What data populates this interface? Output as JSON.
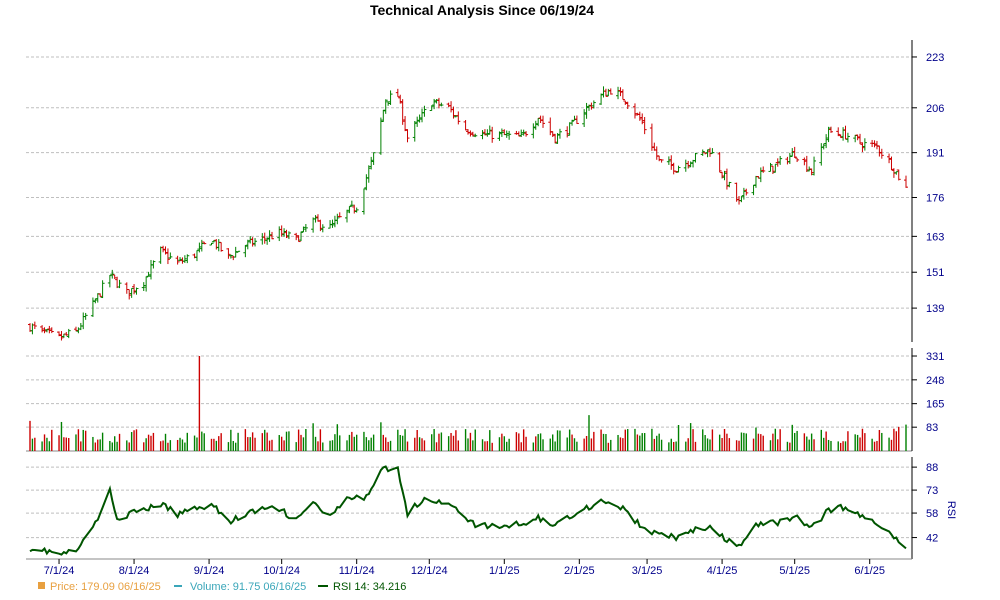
{
  "chart_data": {
    "type": "candlestick-volume-rsi",
    "title": "Technical Analysis Since 06/19/24",
    "x_tick_labels": [
      "7/1/24",
      "8/1/24",
      "9/1/24",
      "10/1/24",
      "11/1/24",
      "12/1/24",
      "1/1/25",
      "2/1/25",
      "3/1/25",
      "4/1/25",
      "5/1/25",
      "6/1/25"
    ],
    "x_tick_dates": [
      "2024-07-01",
      "2024-08-01",
      "2024-09-01",
      "2024-10-01",
      "2024-11-01",
      "2024-12-01",
      "2025-01-01",
      "2025-02-01",
      "2025-03-01",
      "2025-04-01",
      "2025-05-01",
      "2025-06-01"
    ],
    "date_range": [
      "2024-06-19",
      "2025-06-16"
    ],
    "price_panel": {
      "tick_labels": [
        "223",
        "206",
        "191",
        "176",
        "163",
        "151",
        "139"
      ],
      "tick_values": [
        223,
        206,
        191,
        176,
        163,
        151,
        139
      ],
      "ylim": [
        129,
        226
      ],
      "grid": true,
      "up_color": "#008000",
      "down_color": "#cc0000",
      "anchors": [
        [
          "2024-06-19",
          133
        ],
        [
          "2024-06-24",
          131
        ],
        [
          "2024-07-01",
          129
        ],
        [
          "2024-07-08",
          131
        ],
        [
          "2024-07-15",
          140
        ],
        [
          "2024-07-22",
          150
        ],
        [
          "2024-07-29",
          144
        ],
        [
          "2024-08-05",
          148
        ],
        [
          "2024-08-12",
          158
        ],
        [
          "2024-08-19",
          154
        ],
        [
          "2024-08-26",
          157
        ],
        [
          "2024-09-02",
          162
        ],
        [
          "2024-09-09",
          156
        ],
        [
          "2024-09-16",
          160
        ],
        [
          "2024-09-23",
          162
        ],
        [
          "2024-09-30",
          164
        ],
        [
          "2024-10-07",
          162
        ],
        [
          "2024-10-14",
          168
        ],
        [
          "2024-10-21",
          166
        ],
        [
          "2024-10-28",
          171
        ],
        [
          "2024-11-01",
          173
        ],
        [
          "2024-11-08",
          190
        ],
        [
          "2024-11-13",
          209
        ],
        [
          "2024-11-18",
          210
        ],
        [
          "2024-11-22",
          196
        ],
        [
          "2024-12-02",
          208
        ],
        [
          "2024-12-09",
          206
        ],
        [
          "2024-12-16",
          199
        ],
        [
          "2024-12-23",
          197
        ],
        [
          "2024-12-30",
          197
        ],
        [
          "2025-01-08",
          196
        ],
        [
          "2025-01-15",
          203
        ],
        [
          "2025-01-22",
          196
        ],
        [
          "2025-01-29",
          200
        ],
        [
          "2025-02-03",
          205
        ],
        [
          "2025-02-10",
          210
        ],
        [
          "2025-02-14",
          212
        ],
        [
          "2025-02-20",
          209
        ],
        [
          "2025-02-27",
          201
        ],
        [
          "2025-03-06",
          188
        ],
        [
          "2025-03-13",
          186
        ],
        [
          "2025-03-20",
          189
        ],
        [
          "2025-03-27",
          192
        ],
        [
          "2025-04-03",
          181
        ],
        [
          "2025-04-08",
          174
        ],
        [
          "2025-04-15",
          183
        ],
        [
          "2025-04-24",
          187
        ],
        [
          "2025-05-01",
          191
        ],
        [
          "2025-05-08",
          185
        ],
        [
          "2025-05-15",
          198
        ],
        [
          "2025-05-22",
          197
        ],
        [
          "2025-05-29",
          194
        ],
        [
          "2025-06-04",
          193
        ],
        [
          "2025-06-10",
          187
        ],
        [
          "2025-06-16",
          179
        ]
      ]
    },
    "volume_panel": {
      "tick_labels": [
        "331",
        "248",
        "165",
        "83"
      ],
      "tick_values": [
        331,
        248,
        165,
        83
      ],
      "ylim": [
        0,
        345
      ],
      "grid": true,
      "up_color": "#008000",
      "down_color": "#cc0000",
      "spikes": [
        [
          "2024-08-30",
          331
        ],
        [
          "2025-02-07",
          125
        ],
        [
          "2024-11-11",
          100
        ],
        [
          "2024-06-20",
          105
        ],
        [
          "2025-06-16",
          92
        ]
      ]
    },
    "rsi_panel": {
      "tick_labels": [
        "88",
        "73",
        "58",
        "42"
      ],
      "tick_values": [
        88,
        73,
        58,
        42
      ],
      "ylim": [
        28,
        92
      ],
      "grid": true,
      "ylabel": "RSI",
      "line_color": "#005500",
      "anchors": [
        [
          "2024-06-19",
          35
        ],
        [
          "2024-06-24",
          34
        ],
        [
          "2024-07-01",
          31
        ],
        [
          "2024-07-08",
          33
        ],
        [
          "2024-07-15",
          48
        ],
        [
          "2024-07-22",
          72
        ],
        [
          "2024-07-25",
          55
        ],
        [
          "2024-08-05",
          60
        ],
        [
          "2024-08-12",
          64
        ],
        [
          "2024-08-19",
          57
        ],
        [
          "2024-08-26",
          62
        ],
        [
          "2024-09-03",
          63
        ],
        [
          "2024-09-09",
          52
        ],
        [
          "2024-09-16",
          57
        ],
        [
          "2024-09-23",
          61
        ],
        [
          "2024-10-01",
          60
        ],
        [
          "2024-10-07",
          53
        ],
        [
          "2024-10-14",
          65
        ],
        [
          "2024-10-21",
          55
        ],
        [
          "2024-10-28",
          67
        ],
        [
          "2024-11-05",
          68
        ],
        [
          "2024-11-11",
          88
        ],
        [
          "2024-11-18",
          86
        ],
        [
          "2024-11-22",
          58
        ],
        [
          "2024-11-29",
          68
        ],
        [
          "2024-12-06",
          65
        ],
        [
          "2024-12-13",
          60
        ],
        [
          "2024-12-20",
          50
        ],
        [
          "2024-12-30",
          49
        ],
        [
          "2025-01-08",
          51
        ],
        [
          "2025-01-15",
          55
        ],
        [
          "2025-01-22",
          50
        ],
        [
          "2025-01-29",
          57
        ],
        [
          "2025-02-05",
          62
        ],
        [
          "2025-02-10",
          66
        ],
        [
          "2025-02-14",
          65
        ],
        [
          "2025-02-20",
          60
        ],
        [
          "2025-02-27",
          48
        ],
        [
          "2025-03-06",
          44
        ],
        [
          "2025-03-13",
          42
        ],
        [
          "2025-03-20",
          47
        ],
        [
          "2025-03-27",
          48
        ],
        [
          "2025-04-03",
          40
        ],
        [
          "2025-04-08",
          36
        ],
        [
          "2025-04-15",
          50
        ],
        [
          "2025-04-24",
          52
        ],
        [
          "2025-05-01",
          56
        ],
        [
          "2025-05-08",
          48
        ],
        [
          "2025-05-15",
          60
        ],
        [
          "2025-05-22",
          62
        ],
        [
          "2025-05-29",
          55
        ],
        [
          "2025-06-04",
          52
        ],
        [
          "2025-06-10",
          45
        ],
        [
          "2025-06-13",
          38
        ],
        [
          "2025-06-16",
          34
        ]
      ]
    }
  },
  "legend": {
    "price": {
      "label": "Price: 179.09  06/16/25",
      "color": "#e8a040"
    },
    "volume": {
      "label": "Volume: 91.75  06/16/25",
      "color": "#3aa6b9"
    },
    "rsi": {
      "label": "RSI 14: 34.216",
      "color": "#005500"
    }
  }
}
